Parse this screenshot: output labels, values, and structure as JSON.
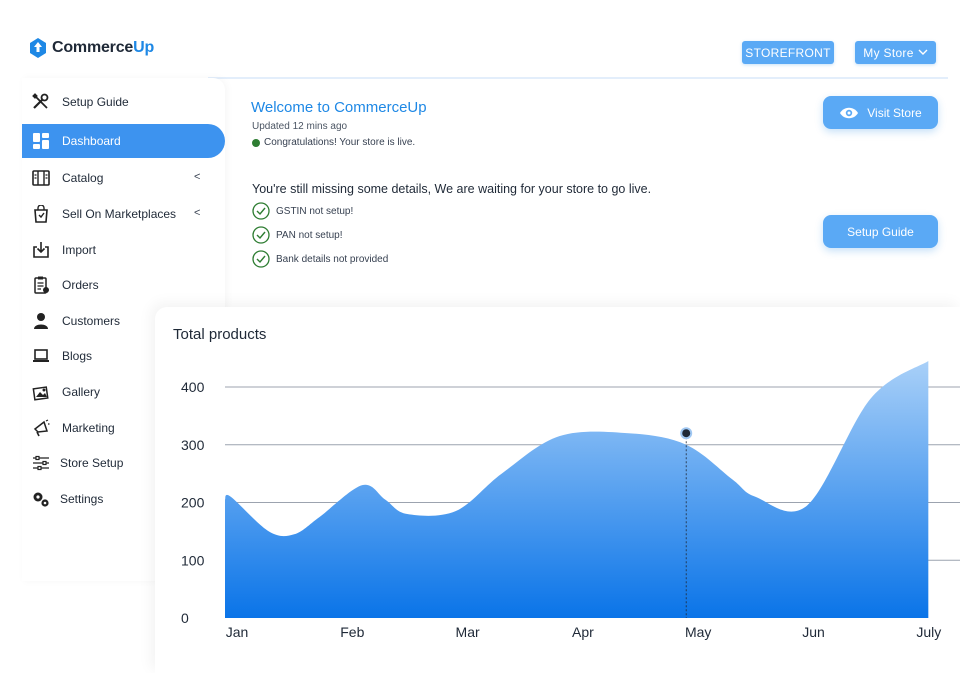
{
  "header": {
    "logo_prefix": "Commerce",
    "logo_suffix": "Up",
    "storefront_label": "STOREFRONT",
    "mystore_label": "My Store"
  },
  "sidebar": {
    "items": [
      {
        "label": "Setup Guide",
        "icon": "tools-icon"
      },
      {
        "label": "Dashboard",
        "icon": "dashboard-icon",
        "active": true
      },
      {
        "label": "Catalog",
        "icon": "catalog-icon",
        "chevron": "<"
      },
      {
        "label": "Sell On Marketplaces",
        "icon": "marketplace-icon",
        "chevron": "<"
      },
      {
        "label": "Import",
        "icon": "import-icon"
      },
      {
        "label": "Orders",
        "icon": "orders-icon"
      },
      {
        "label": "Customers",
        "icon": "customer-icon"
      },
      {
        "label": "Blogs",
        "icon": "laptop-icon"
      },
      {
        "label": "Gallery",
        "icon": "gallery-icon"
      },
      {
        "label": "Marketing",
        "icon": "megaphone-icon"
      },
      {
        "label": "Store Setup",
        "icon": "sliders-icon"
      },
      {
        "label": "Settings",
        "icon": "gears-icon"
      }
    ]
  },
  "welcome": {
    "title": "Welcome to CommerceUp",
    "updated": "Updated 12 mins ago",
    "live_status": "Congratulations! Your store is live.",
    "live_color": "#2e7d32",
    "missing_text": "You're still missing some details, We are waiting for your store to go live.",
    "checks": [
      "GSTIN not setup!",
      "PAN not setup!",
      "Bank details not provided"
    ],
    "visit_label": "Visit Store",
    "setup_label": "Setup Guide"
  },
  "colors": {
    "accent": "#1e88e5",
    "button": "#5aa9f5",
    "active_nav": "#3d93ef"
  },
  "chart_data": {
    "type": "area",
    "title": "Total products",
    "categories": [
      "Jan",
      "Feb",
      "Mar",
      "Apr",
      "May",
      "Jun",
      "July"
    ],
    "yticks": [
      0,
      100,
      200,
      300,
      400
    ],
    "ylim": [
      0,
      400
    ],
    "grid": true,
    "highlight": {
      "category": "May",
      "value": 320
    },
    "series": [
      {
        "x": [
          0,
          0.05,
          0.38,
          0.6,
          0.82,
          1.19,
          1.39,
          1.58,
          2.0,
          2.4,
          2.9,
          3.5,
          4.0,
          4.4,
          4.6,
          5.05,
          5.6,
          6.1
        ],
        "values": [
          205,
          210,
          150,
          145,
          175,
          230,
          205,
          180,
          185,
          250,
          315,
          320,
          300,
          240,
          210,
          195,
          380,
          445
        ]
      }
    ]
  }
}
